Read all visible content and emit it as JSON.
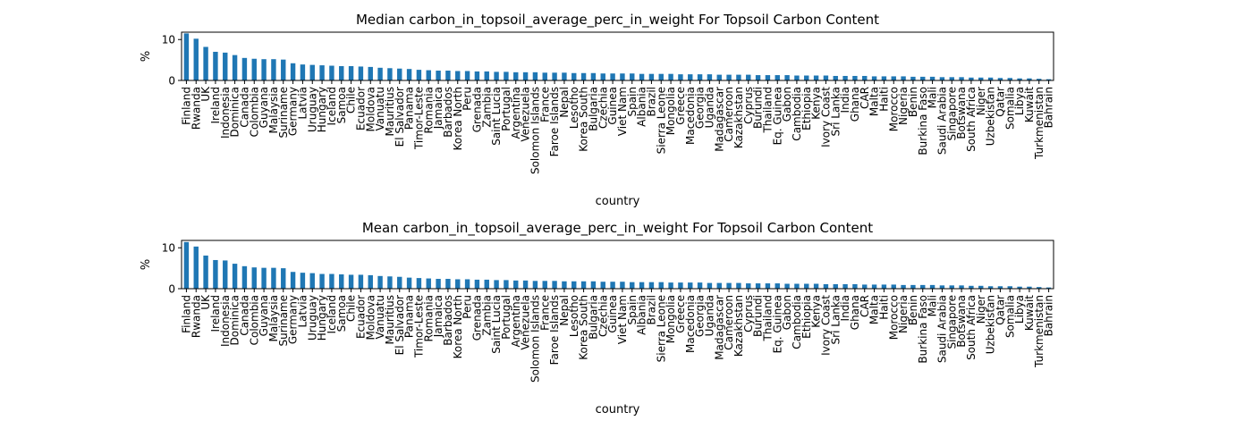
{
  "chart_data": [
    {
      "type": "bar",
      "title": "Median carbon_in_topsoil_average_perc_in_weight For Topsoil Carbon Content",
      "xlabel": "country",
      "ylabel": "%",
      "color": "#1f77b4",
      "ylim": [
        0,
        11.8
      ],
      "yticks": [
        0,
        10
      ],
      "categories": [
        "Finland",
        "Rwanda",
        "UK",
        "Ireland",
        "Indonesia",
        "Dominica",
        "Canada",
        "Colombia",
        "Guyana",
        "Malaysia",
        "Suriname",
        "Germany",
        "Latvia",
        "Uruguay",
        "Hungary",
        "Iceland",
        "Samoa",
        "Chile",
        "Ecuador",
        "Moldova",
        "Vanuatu",
        "Mauritius",
        "El Salvador",
        "Panama",
        "Timor-Leste",
        "Romania",
        "Jamaica",
        "Barbados",
        "Korea North",
        "Peru",
        "Grenada",
        "Zambia",
        "Saint Lucia",
        "Portugal",
        "Argentina",
        "Venezuela",
        "Solomon Islands",
        "France",
        "Faroe Islands",
        "Nepal",
        "Lesotho",
        "Korea South",
        "Bulgaria",
        "Czechia",
        "Guinea",
        "Viet Nam",
        "Spain",
        "Albania",
        "Brazil",
        "Sierra Leone",
        "Mongolia",
        "Greece",
        "Macedonia",
        "Georgia",
        "Uganda",
        "Madagascar",
        "Cameroon",
        "Kazakhstan",
        "Cyprus",
        "Burundi",
        "Thailand",
        "Eq. Guinea",
        "Gabon",
        "Cambodia",
        "Ethiopia",
        "Kenya",
        "Ivory Coast",
        "Sri Lanka",
        "India",
        "Ghana",
        "CAR",
        "Malta",
        "Haiti",
        "Morocco",
        "Nigeria",
        "Benin",
        "Burkina Faso",
        "Mali",
        "Saudi Arabia",
        "Singapore",
        "Botswana",
        "South Africa",
        "Niger",
        "Uzbekistan",
        "Qatar",
        "Somalia",
        "Libya",
        "Kuwait",
        "Turkmenistan",
        "Bahrain"
      ],
      "values": [
        11.5,
        10.2,
        8.2,
        7.0,
        6.8,
        6.2,
        5.5,
        5.3,
        5.2,
        5.2,
        5.1,
        4.2,
        3.9,
        3.8,
        3.7,
        3.6,
        3.5,
        3.5,
        3.4,
        3.3,
        3.1,
        3.0,
        2.9,
        2.8,
        2.6,
        2.5,
        2.4,
        2.4,
        2.3,
        2.3,
        2.2,
        2.2,
        2.1,
        2.1,
        2.0,
        2.0,
        2.0,
        1.9,
        1.9,
        1.9,
        1.8,
        1.8,
        1.8,
        1.7,
        1.7,
        1.7,
        1.7,
        1.6,
        1.6,
        1.6,
        1.6,
        1.5,
        1.5,
        1.5,
        1.5,
        1.4,
        1.4,
        1.4,
        1.4,
        1.3,
        1.3,
        1.3,
        1.3,
        1.2,
        1.2,
        1.2,
        1.2,
        1.1,
        1.1,
        1.1,
        1.1,
        1.0,
        1.0,
        1.0,
        1.0,
        0.9,
        0.9,
        0.9,
        0.8,
        0.8,
        0.8,
        0.7,
        0.7,
        0.7,
        0.6,
        0.6,
        0.5,
        0.5,
        0.4,
        0.3
      ]
    },
    {
      "type": "bar",
      "title": "Mean carbon_in_topsoil_average_perc_in_weight For Topsoil Carbon Content",
      "xlabel": "country",
      "ylabel": "%",
      "color": "#1f77b4",
      "ylim": [
        0,
        11.8
      ],
      "yticks": [
        0,
        10
      ],
      "categories": [
        "Finland",
        "Rwanda",
        "UK",
        "Ireland",
        "Indonesia",
        "Dominica",
        "Canada",
        "Colombia",
        "Guyana",
        "Malaysia",
        "Suriname",
        "Germany",
        "Latvia",
        "Uruguay",
        "Hungary",
        "Iceland",
        "Samoa",
        "Chile",
        "Ecuador",
        "Moldova",
        "Vanuatu",
        "Mauritius",
        "El Salvador",
        "Panama",
        "Timor-Leste",
        "Romania",
        "Jamaica",
        "Barbados",
        "Korea North",
        "Peru",
        "Grenada",
        "Zambia",
        "Saint Lucia",
        "Portugal",
        "Argentina",
        "Venezuela",
        "Solomon Islands",
        "France",
        "Faroe Islands",
        "Nepal",
        "Lesotho",
        "Korea South",
        "Bulgaria",
        "Czechia",
        "Guinea",
        "Viet Nam",
        "Spain",
        "Albania",
        "Brazil",
        "Sierra Leone",
        "Mongolia",
        "Greece",
        "Macedonia",
        "Georgia",
        "Uganda",
        "Madagascar",
        "Cameroon",
        "Kazakhstan",
        "Cyprus",
        "Burundi",
        "Thailand",
        "Eq. Guinea",
        "Gabon",
        "Cambodia",
        "Ethiopia",
        "Kenya",
        "Ivory Coast",
        "Sri Lanka",
        "India",
        "Ghana",
        "CAR",
        "Malta",
        "Haiti",
        "Morocco",
        "Nigeria",
        "Benin",
        "Burkina Faso",
        "Mali",
        "Saudi Arabia",
        "Singapore",
        "Botswana",
        "South Africa",
        "Niger",
        "Uzbekistan",
        "Qatar",
        "Somalia",
        "Libya",
        "Kuwait",
        "Turkmenistan",
        "Bahrain"
      ],
      "values": [
        11.4,
        10.3,
        8.1,
        7.0,
        6.9,
        6.1,
        5.5,
        5.2,
        5.1,
        5.1,
        5.0,
        4.1,
        3.9,
        3.8,
        3.6,
        3.6,
        3.5,
        3.4,
        3.4,
        3.3,
        3.1,
        3.0,
        2.9,
        2.7,
        2.6,
        2.5,
        2.4,
        2.4,
        2.3,
        2.3,
        2.2,
        2.2,
        2.1,
        2.1,
        2.0,
        2.0,
        1.9,
        1.9,
        1.9,
        1.8,
        1.8,
        1.8,
        1.8,
        1.7,
        1.7,
        1.7,
        1.6,
        1.6,
        1.6,
        1.6,
        1.5,
        1.5,
        1.5,
        1.5,
        1.4,
        1.4,
        1.4,
        1.4,
        1.3,
        1.3,
        1.3,
        1.3,
        1.2,
        1.2,
        1.2,
        1.2,
        1.1,
        1.1,
        1.1,
        1.1,
        1.0,
        1.0,
        1.0,
        1.0,
        0.9,
        0.9,
        0.9,
        0.9,
        0.8,
        0.8,
        0.8,
        0.7,
        0.7,
        0.6,
        0.6,
        0.6,
        0.5,
        0.5,
        0.4,
        0.3
      ]
    }
  ]
}
